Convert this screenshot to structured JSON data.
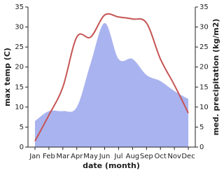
{
  "chart_data": {
    "type": "line-area",
    "x_label": "date (month)",
    "y_label": "max temp (C)",
    "y2_label": "med. precipitation (kg/m2)",
    "categories": [
      "Jan",
      "Feb",
      "Mar",
      "Apr",
      "May",
      "Jun",
      "Jul",
      "Aug",
      "Sep",
      "Oct",
      "Nov",
      "Dec"
    ],
    "series": [
      {
        "name": "max temp",
        "type": "line",
        "color": "#c65454",
        "values": [
          1.5,
          8,
          15,
          27.5,
          27.5,
          33,
          32.5,
          32,
          31,
          22,
          15.5,
          8.5
        ]
      },
      {
        "name": "med. precipitation",
        "type": "area",
        "axis": "y2",
        "color": "#a9b3ef",
        "values": [
          6.5,
          9,
          9,
          10,
          21,
          31,
          22,
          22,
          18,
          16.5,
          14,
          12
        ]
      }
    ],
    "ylim": [
      0,
      35
    ],
    "yticks": [
      0,
      5,
      10,
      15,
      20,
      25,
      30,
      35
    ],
    "y2lim": [
      0,
      35
    ],
    "y2ticks": [
      0,
      5,
      10,
      15,
      20,
      25,
      30,
      35
    ],
    "grid": false
  }
}
